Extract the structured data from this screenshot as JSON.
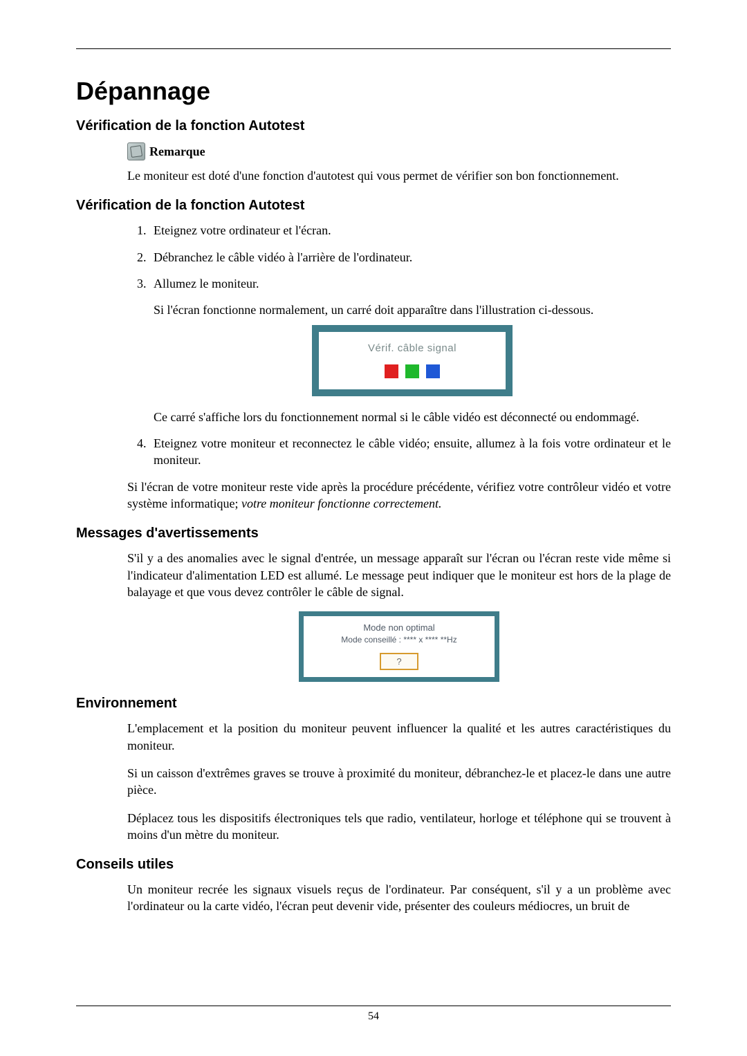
{
  "page": {
    "number": "54",
    "title": "Dépannage"
  },
  "sections": {
    "autotest1": {
      "heading": "Vérification de la fonction Autotest",
      "note_label": "Remarque",
      "note_body": "Le moniteur est doté d'une fonction d'autotest qui vous permet de vérifier son bon fonctionnement."
    },
    "autotest2": {
      "heading": "Vérification de la fonction Autotest",
      "step1": "Eteignez votre ordinateur et l'écran.",
      "step2": "Débranchez le câble vidéo à l'arrière de l'ordinateur.",
      "step3": "Allumez le moniteur.",
      "step3_sub1": "Si l'écran fonctionne normalement, un carré doit apparaître dans l'illustration ci-dessous.",
      "step3_sub2": "Ce carré s'affiche lors du fonctionnement normal si le câble vidéo est déconnecté ou endommagé.",
      "step4": "Eteignez votre moniteur et reconnectez le câble vidéo; ensuite, allumez à la fois votre ordinateur et le moniteur.",
      "closing_prefix": "Si l'écran de votre moniteur reste vide après la procédure précédente, vérifiez votre contrôleur vidéo et votre système informatique; ",
      "closing_italic": "votre moniteur fonctionne correctement."
    },
    "osd1": {
      "text": "Vérif. câble signal",
      "colors": {
        "red": "#e02020",
        "green": "#1fb82c",
        "blue": "#1f58d6"
      },
      "frame_color": "#3f7d8a"
    },
    "warnings": {
      "heading": "Messages d'avertissements",
      "body": "S'il y a des anomalies avec le signal d'entrée, un message apparaît sur l'écran ou l'écran reste vide même si l'indicateur d'alimentation LED est allumé. Le message peut indiquer que le moniteur est hors de la plage de balayage et que vous devez contrôler le câble de signal."
    },
    "osd2": {
      "line1": "Mode non optimal",
      "line2": "Mode conseillé :  **** x ****  **Hz",
      "button": "?",
      "frame_color": "#3f7d8a",
      "button_border": "#d69a2d"
    },
    "environment": {
      "heading": "Environnement",
      "p1": "L'emplacement et la position du moniteur peuvent influencer la qualité et les autres caractéristiques du moniteur.",
      "p2": "Si un caisson d'extrêmes graves se trouve à proximité du moniteur, débranchez-le et placez-le dans une autre pièce.",
      "p3": "Déplacez tous les dispositifs électroniques tels que radio, ventilateur, horloge et téléphone qui se trouvent à moins d'un mètre du moniteur."
    },
    "tips": {
      "heading": "Conseils utiles",
      "p1": "Un moniteur recrée les signaux visuels reçus de l'ordinateur. Par conséquent, s'il y a un problème avec l'ordinateur ou la carte vidéo, l'écran peut devenir vide, présenter des couleurs médiocres, un bruit de"
    }
  }
}
